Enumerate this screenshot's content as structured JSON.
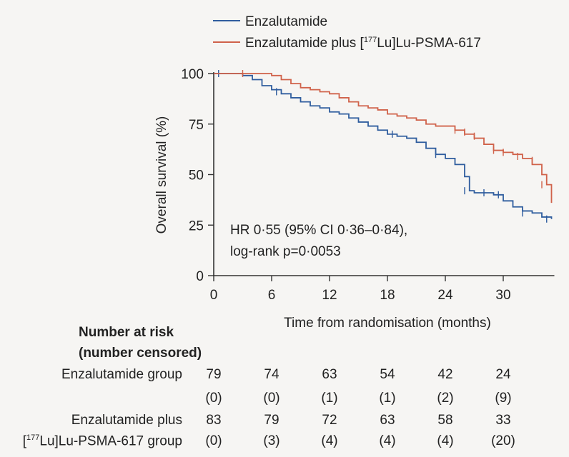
{
  "chart_data": {
    "type": "line",
    "subtype": "kaplan-meier",
    "xlabel": "Time from randomisation (months)",
    "ylabel": "Overall survival (%)",
    "xlim": [
      0,
      35
    ],
    "ylim": [
      0,
      100
    ],
    "xticks": [
      0,
      6,
      12,
      18,
      24,
      30
    ],
    "yticks": [
      0,
      25,
      50,
      75,
      100
    ],
    "grid": false,
    "legend_position": "top",
    "annotation": [
      "HR 0·55 (95% CI 0·36–0·84),",
      "log-rank p=0·0053"
    ],
    "series": [
      {
        "name": "Enzalutamide",
        "color": "#2f5d9e",
        "steps": [
          [
            0,
            100
          ],
          [
            3,
            99
          ],
          [
            4,
            97
          ],
          [
            5,
            94
          ],
          [
            6,
            92
          ],
          [
            7,
            90
          ],
          [
            8,
            88
          ],
          [
            9,
            86
          ],
          [
            10,
            84
          ],
          [
            11,
            83
          ],
          [
            12,
            81
          ],
          [
            13,
            80
          ],
          [
            14,
            78
          ],
          [
            15,
            76
          ],
          [
            16,
            74
          ],
          [
            17,
            72
          ],
          [
            18,
            70
          ],
          [
            19,
            69
          ],
          [
            20,
            68
          ],
          [
            21,
            66
          ],
          [
            22,
            63
          ],
          [
            23,
            60
          ],
          [
            24,
            58
          ],
          [
            25,
            55
          ],
          [
            26,
            49
          ],
          [
            26.5,
            42
          ],
          [
            27,
            41
          ],
          [
            29,
            40
          ],
          [
            30,
            37
          ],
          [
            31,
            34
          ],
          [
            32,
            32
          ],
          [
            33,
            31
          ],
          [
            34,
            29
          ],
          [
            35,
            28
          ]
        ],
        "censored": [
          [
            0.5,
            100
          ],
          [
            6.5,
            91
          ],
          [
            18.5,
            70
          ],
          [
            23,
            60
          ],
          [
            26,
            42
          ],
          [
            28,
            41
          ],
          [
            29.5,
            40
          ],
          [
            32,
            31
          ],
          [
            34.5,
            28
          ]
        ]
      },
      {
        "name": "Enzalutamide plus [177Lu]Lu-PSMA-617",
        "color": "#d0624a",
        "steps": [
          [
            0,
            100
          ],
          [
            6,
            99
          ],
          [
            7,
            97
          ],
          [
            8,
            95
          ],
          [
            9,
            93
          ],
          [
            10,
            92
          ],
          [
            11,
            91
          ],
          [
            12,
            90
          ],
          [
            13,
            88
          ],
          [
            14,
            86
          ],
          [
            15,
            84
          ],
          [
            16,
            83
          ],
          [
            17,
            82
          ],
          [
            18,
            80
          ],
          [
            19,
            79
          ],
          [
            20,
            78
          ],
          [
            21,
            77
          ],
          [
            22,
            75
          ],
          [
            23,
            74
          ],
          [
            24,
            74
          ],
          [
            25,
            72
          ],
          [
            26,
            70
          ],
          [
            27,
            68
          ],
          [
            28,
            65
          ],
          [
            29,
            62
          ],
          [
            30,
            61
          ],
          [
            31,
            60
          ],
          [
            32,
            58
          ],
          [
            33,
            55
          ],
          [
            34,
            50
          ],
          [
            34.5,
            45
          ],
          [
            35,
            36
          ]
        ],
        "censored": [
          [
            3,
            100
          ],
          [
            25,
            72
          ],
          [
            26,
            71
          ],
          [
            27,
            69
          ],
          [
            29,
            62
          ],
          [
            30,
            61
          ],
          [
            31.5,
            59
          ],
          [
            33,
            57
          ],
          [
            34,
            45
          ]
        ]
      }
    ]
  },
  "legend": {
    "items": [
      "Enzalutamide",
      "Enzalutamide plus [177Lu]Lu-PSMA-617"
    ]
  },
  "risk_table": {
    "header_line1": "Number at risk",
    "header_line2": "(number censored)",
    "groups": [
      {
        "label_lines": [
          "Enzalutamide group"
        ],
        "at_risk": [
          "79",
          "74",
          "63",
          "54",
          "42",
          "24"
        ],
        "censored": [
          "(0)",
          "(0)",
          "(1)",
          "(1)",
          "(2)",
          "(9)"
        ]
      },
      {
        "label_lines": [
          "Enzalutamide plus",
          "[177Lu]Lu-PSMA-617 group"
        ],
        "at_risk": [
          "83",
          "79",
          "72",
          "63",
          "58",
          "33"
        ],
        "censored": [
          "(0)",
          "(3)",
          "(4)",
          "(4)",
          "(4)",
          "(20)"
        ]
      }
    ]
  }
}
